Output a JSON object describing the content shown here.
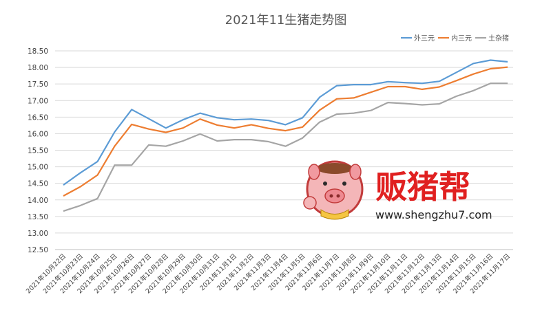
{
  "chart_data": {
    "type": "line",
    "title": "2021年11生猪走势图",
    "xlabel": "",
    "ylabel": "",
    "ylim": [
      12.5,
      18.5
    ],
    "yticks": [
      "18.50",
      "18.00",
      "17.50",
      "17.00",
      "16.50",
      "16.00",
      "15.50",
      "15.00",
      "14.50",
      "14.00",
      "13.50",
      "13.00",
      "12.50"
    ],
    "grid": true,
    "legend_position": "top-right",
    "categories": [
      "2021年10月22日",
      "2021年10月23日",
      "2021年10月24日",
      "2021年10月25日",
      "2021年10月26日",
      "2021年10月27日",
      "2021年10月28日",
      "2021年10月29日",
      "2021年10月30日",
      "2021年10月31日",
      "2021年11月1日",
      "2021年11月2日",
      "2021年11月3日",
      "2021年11月4日",
      "2021年11月5日",
      "2021年11月6日",
      "2021年11月7日",
      "2021年11月8日",
      "2021年11月9日",
      "2021年11月10日",
      "2021年11月11日",
      "2021年11月12日",
      "2021年11月13日",
      "2021年11月14日",
      "2021年11月15日",
      "2021年11月16日",
      "2021年11月17日"
    ],
    "series": [
      {
        "name": "外三元",
        "color": "#5b9bd5",
        "values": [
          14.45,
          14.82,
          15.16,
          16.05,
          16.73,
          16.45,
          16.17,
          16.42,
          16.62,
          16.48,
          16.42,
          16.44,
          16.4,
          16.27,
          16.48,
          17.1,
          17.45,
          17.48,
          17.48,
          17.57,
          17.54,
          17.52,
          17.58,
          17.85,
          18.12,
          18.22,
          18.17
        ]
      },
      {
        "name": "内三元",
        "color": "#ed7d31",
        "values": [
          14.12,
          14.4,
          14.75,
          15.62,
          16.28,
          16.14,
          16.04,
          16.17,
          16.44,
          16.26,
          16.17,
          16.27,
          16.16,
          16.09,
          16.2,
          16.71,
          17.05,
          17.08,
          17.25,
          17.42,
          17.42,
          17.34,
          17.41,
          17.6,
          17.8,
          17.96,
          18.01
        ]
      },
      {
        "name": "土杂猪",
        "color": "#a5a5a5",
        "values": [
          13.66,
          13.83,
          14.04,
          15.05,
          15.05,
          15.66,
          15.62,
          15.78,
          15.99,
          15.78,
          15.82,
          15.82,
          15.76,
          15.62,
          15.87,
          16.35,
          16.59,
          16.62,
          16.7,
          16.94,
          16.91,
          16.87,
          16.9,
          17.13,
          17.3,
          17.52,
          17.52
        ]
      }
    ]
  },
  "watermark": {
    "brand": "贩猪帮",
    "url": "www.shengzhu7.com",
    "logo_icon": "pig-face-logo-icon"
  }
}
